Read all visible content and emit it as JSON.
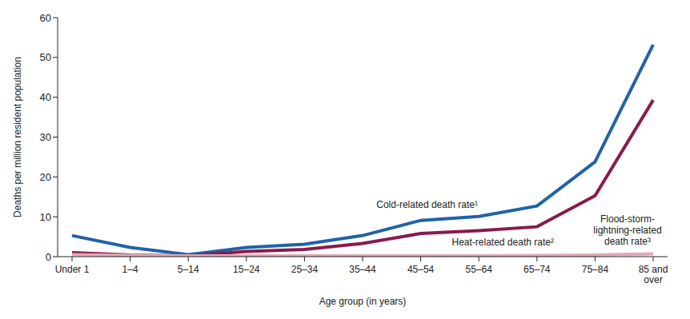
{
  "chart_data": {
    "type": "line",
    "x_label": "Age group (in years)",
    "y_label": "Deaths per million resident population",
    "categories": [
      "Under 1",
      "1–4",
      "5–14",
      "15–24",
      "25–34",
      "35–44",
      "45–54",
      "55–64",
      "65–74",
      "75–84",
      "85 and over"
    ],
    "series": [
      {
        "name": "Cold-related death rate¹",
        "color": "#1f63a8",
        "values": [
          5.3,
          2.3,
          0.5,
          2.3,
          3.1,
          5.3,
          9.1,
          10.1,
          12.7,
          23.8,
          53.2
        ]
      },
      {
        "name": "Heat-related death rate²",
        "color": "#8a1a4b",
        "values": [
          1.0,
          0.4,
          0.2,
          1.3,
          1.8,
          3.3,
          5.8,
          6.5,
          7.5,
          15.3,
          39.3
        ]
      },
      {
        "name": "Flood-storm-lightning-related death rate³",
        "color": "#e2aab6",
        "values": [
          0.5,
          0.3,
          0.2,
          0.2,
          0.2,
          0.2,
          0.2,
          0.2,
          0.3,
          0.4,
          0.7
        ]
      }
    ],
    "ylim": [
      0,
      60
    ],
    "yticks": [
      0,
      10,
      20,
      30,
      40,
      50,
      60
    ],
    "grid": false
  }
}
